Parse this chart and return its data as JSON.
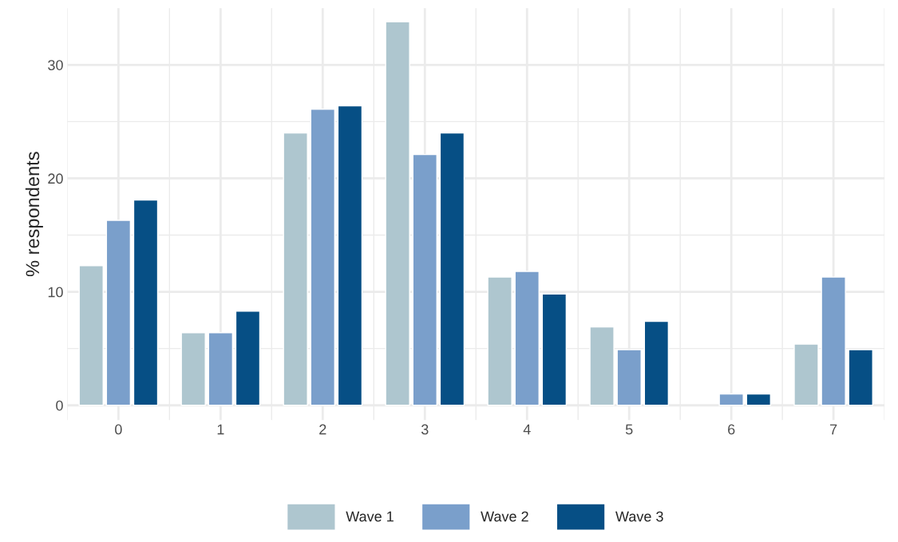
{
  "chart_data": {
    "type": "bar",
    "ylabel": "% respondents",
    "categories": [
      "0",
      "1",
      "2",
      "3",
      "4",
      "5",
      "6",
      "7"
    ],
    "series": [
      {
        "name": "Wave 1",
        "color": "#aec6cf",
        "values": [
          12.3,
          6.4,
          24.0,
          33.8,
          11.3,
          6.9,
          null,
          5.4
        ]
      },
      {
        "name": "Wave 2",
        "color": "#7a9fcb",
        "values": [
          16.3,
          6.4,
          26.1,
          22.1,
          11.8,
          4.9,
          1.0,
          11.3
        ]
      },
      {
        "name": "Wave 3",
        "color": "#064f85",
        "values": [
          18.1,
          8.3,
          26.4,
          24.0,
          9.8,
          7.4,
          1.0,
          4.9
        ]
      }
    ],
    "ylim": [
      -1.3,
      35.0
    ],
    "yticks": [
      0,
      {
        "value": 5,
        "label": null
      },
      10,
      {
        "value": 15,
        "label": null
      },
      20,
      {
        "value": 25,
        "label": null
      },
      30
    ],
    "grid": true,
    "legend": "bottom"
  }
}
